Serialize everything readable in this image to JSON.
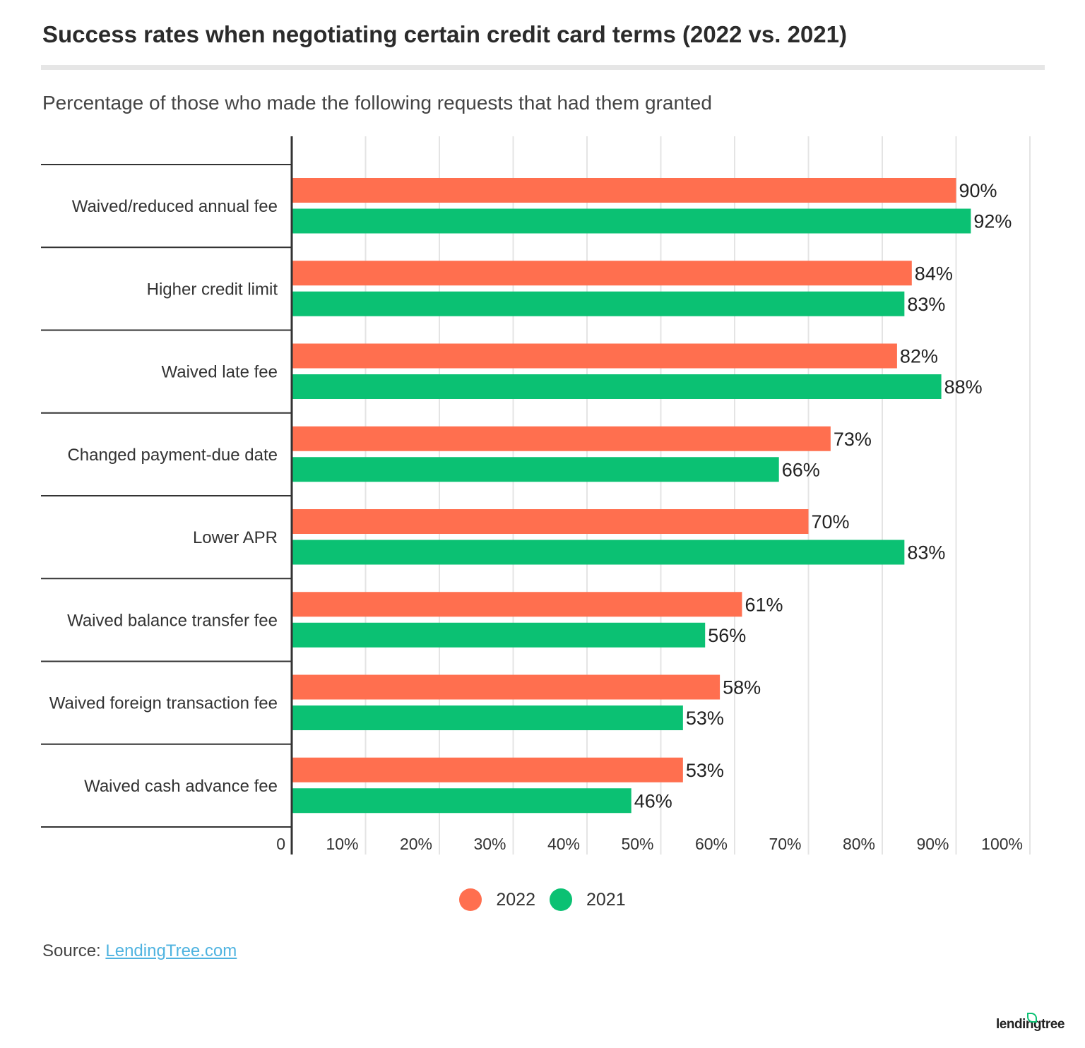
{
  "title": "Success rates when negotiating certain credit card terms (2022 vs. 2021)",
  "subtitle": "Percentage of those who made the following requests that had them granted",
  "source_label": "Source:",
  "source_link": "LendingTree.com",
  "logo_text": "lendingtree",
  "colors": {
    "2022": "#FF6F4F",
    "2021": "#0BC173"
  },
  "chart_data": {
    "type": "bar",
    "orientation": "horizontal",
    "categories": [
      "Waived/reduced annual fee",
      "Higher credit limit",
      "Waived late fee",
      "Changed payment-due date",
      "Lower APR",
      "Waived balance transfer fee",
      "Waived foreign transaction fee",
      "Waived cash advance fee"
    ],
    "series": [
      {
        "name": "2022",
        "color": "#FF6F4F",
        "values": [
          90,
          84,
          82,
          73,
          70,
          61,
          58,
          53
        ],
        "labels": [
          "90%",
          "84%",
          "82%",
          "73%",
          "70%",
          "61%",
          "58%",
          "53%"
        ]
      },
      {
        "name": "2021",
        "color": "#0BC173",
        "values": [
          92,
          83,
          88,
          66,
          83,
          56,
          53,
          46
        ],
        "labels": [
          "92%",
          "83%",
          "88%",
          "66%",
          "83%",
          "56%",
          "53%",
          "46%"
        ]
      }
    ],
    "xlim": [
      0,
      100
    ],
    "xticks": [
      "0",
      "10%",
      "20%",
      "30%",
      "40%",
      "50%",
      "60%",
      "70%",
      "80%",
      "90%",
      "100%"
    ],
    "grid": true,
    "legend": "bottom-center"
  }
}
